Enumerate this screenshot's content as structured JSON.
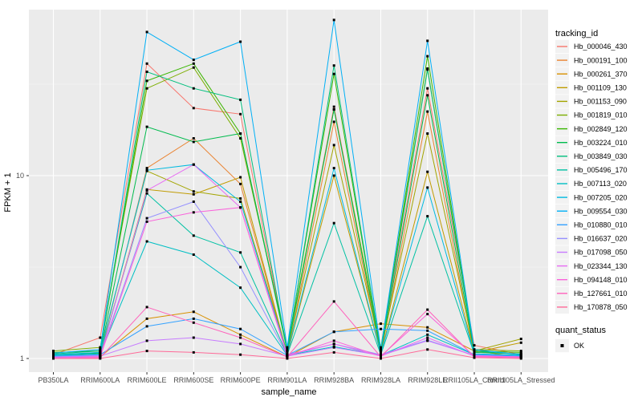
{
  "chart_data": {
    "type": "line",
    "title": "",
    "xlabel": "sample_name",
    "ylabel": "FPKM + 1",
    "y_scale": "log10",
    "y_ticks": [
      1,
      10
    ],
    "y_tick_labels": [
      "1",
      "10"
    ],
    "y_minor_breaks": [
      3.162,
      31.62
    ],
    "ylim": [
      0.93,
      79
    ],
    "grid": "ggplot-grey-panel-white-gridlines",
    "legend_position": "right",
    "point_marker": "filled-black-square",
    "categories": [
      "PB350LA",
      "RRIM600LA",
      "RRIM600LE",
      "RRIM600SE",
      "RRIM600PE",
      "RRIM901LA",
      "RRIM928BA",
      "RRIM928LA",
      "RRIM928LE",
      "RRII105LA_Control",
      "RRII105LA_Stressed"
    ],
    "series": [
      {
        "name": "Hb_000046_430",
        "color": "#F8766D",
        "values": [
          1.05,
          1.3,
          41,
          23.4,
          21.7,
          1.1,
          23.8,
          1.12,
          30,
          1.18,
          1.05
        ]
      },
      {
        "name": "Hb_000191_100",
        "color": "#EA8331",
        "values": [
          1.02,
          1.05,
          11,
          16,
          9,
          1.05,
          19.7,
          1.05,
          22.4,
          1.05,
          1.02
        ]
      },
      {
        "name": "Hb_000261_370",
        "color": "#D89000",
        "values": [
          1.03,
          1.02,
          1.65,
          1.8,
          1.35,
          1.02,
          1.4,
          1.55,
          1.48,
          1.1,
          1.02
        ]
      },
      {
        "name": "Hb_001109_130",
        "color": "#C09B00",
        "values": [
          1.02,
          1.03,
          8.4,
          7.9,
          9.8,
          1.05,
          10.0,
          1.06,
          10.5,
          1.08,
          1.22
        ]
      },
      {
        "name": "Hb_001153_090",
        "color": "#A3A500",
        "values": [
          1.04,
          1.08,
          10.6,
          8.2,
          7.5,
          1.08,
          14.7,
          1.1,
          17,
          1.1,
          1.28
        ]
      },
      {
        "name": "Hb_001819_010",
        "color": "#7CAE00",
        "values": [
          1.1,
          1.15,
          30,
          39,
          16,
          1.15,
          23,
          1.15,
          38.5,
          1.12,
          1.1
        ]
      },
      {
        "name": "Hb_002849_120",
        "color": "#39B600",
        "values": [
          1.08,
          1.1,
          33,
          41,
          17,
          1.12,
          36,
          1.1,
          45,
          1.1,
          1.08
        ]
      },
      {
        "name": "Hb_003224_010",
        "color": "#00BB4E",
        "values": [
          1.05,
          1.07,
          18.5,
          15.3,
          17,
          1.1,
          23,
          1.08,
          27.5,
          1.08,
          1.06
        ]
      },
      {
        "name": "Hb_003849_030",
        "color": "#00BF7D",
        "values": [
          1.06,
          1.1,
          37,
          30,
          26,
          1.1,
          40,
          1.1,
          38,
          1.1,
          1.05
        ]
      },
      {
        "name": "Hb_005496_170",
        "color": "#00C1A3",
        "values": [
          1.03,
          1.05,
          8.0,
          4.7,
          3.8,
          1.05,
          5.5,
          1.05,
          6.0,
          1.06,
          1.04
        ]
      },
      {
        "name": "Hb_007113_020",
        "color": "#00BFC4",
        "values": [
          1.04,
          1.06,
          4.37,
          3.7,
          2.44,
          1.04,
          1.16,
          1.04,
          1.35,
          1.05,
          1.03
        ]
      },
      {
        "name": "Hb_007205_020",
        "color": "#00BAE0",
        "values": [
          1.05,
          1.08,
          10.7,
          11.5,
          7.2,
          1.06,
          11,
          1.06,
          8.6,
          1.06,
          1.04
        ]
      },
      {
        "name": "Hb_009554_030",
        "color": "#00B0F6",
        "values": [
          1.07,
          1.12,
          61,
          43,
          54,
          1.15,
          71,
          1.12,
          54.6,
          1.12,
          1.05
        ]
      },
      {
        "name": "Hb_010880_010",
        "color": "#35A2FF",
        "values": [
          1.03,
          1.05,
          1.5,
          1.65,
          1.45,
          1.04,
          1.4,
          1.45,
          1.42,
          1.05,
          1.03
        ]
      },
      {
        "name": "Hb_016637_020",
        "color": "#9590FF",
        "values": [
          1.02,
          1.04,
          5.85,
          7.2,
          3.16,
          1.04,
          1.2,
          1.05,
          1.26,
          1.04,
          1.02
        ]
      },
      {
        "name": "Hb_017098_050",
        "color": "#C77CFF",
        "values": [
          1.02,
          1.03,
          1.25,
          1.3,
          1.2,
          1.03,
          1.15,
          1.04,
          1.25,
          1.04,
          1.02
        ]
      },
      {
        "name": "Hb_023344_130",
        "color": "#E76BF3",
        "values": [
          1.01,
          1.02,
          8.3,
          11.5,
          6.7,
          1.05,
          1.2,
          1.03,
          1.3,
          1.03,
          1.02
        ]
      },
      {
        "name": "Hb_094148_010",
        "color": "#FA62DB",
        "values": [
          1.01,
          1.02,
          5.6,
          6.3,
          6.7,
          1.03,
          1.25,
          1.03,
          1.75,
          1.03,
          1.02
        ]
      },
      {
        "name": "Hb_127661_010",
        "color": "#FF62BC",
        "values": [
          1.0,
          1.01,
          1.91,
          1.57,
          1.3,
          1.02,
          2.05,
          1.02,
          1.85,
          1.02,
          1.01
        ]
      },
      {
        "name": "Hb_170878_050",
        "color": "#FF6A98",
        "values": [
          1.0,
          1.0,
          1.1,
          1.08,
          1.05,
          1.0,
          1.08,
          1.0,
          1.12,
          1.01,
          1.0
        ]
      }
    ]
  },
  "legend": {
    "tracking_title": "tracking_id",
    "quant_title": "quant_status",
    "quant_items": [
      {
        "label": "OK",
        "marker": "black-square"
      }
    ]
  },
  "colors": {
    "panel_bg": "#EBEBEB",
    "grid_major": "#FFFFFF",
    "grid_minor": "#F5F5F5",
    "tick_text": "#4D4D4D",
    "tick_mark": "#333333",
    "legend_key_bg": "#F2F2F2",
    "point": "#000000"
  }
}
